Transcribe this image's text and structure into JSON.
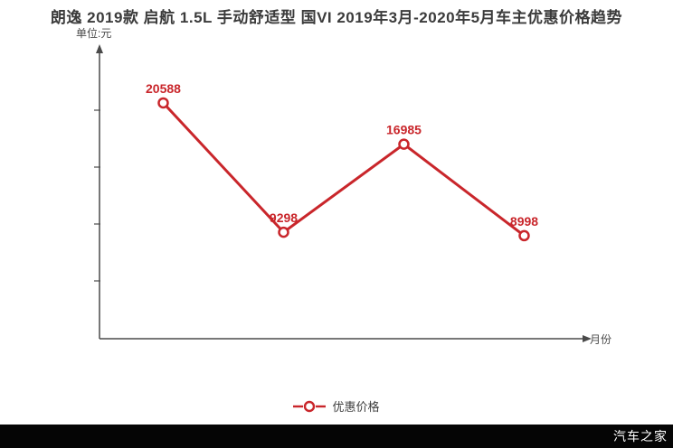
{
  "title": "朗逸 2019款 启航 1.5L 手动舒适型 国VI 2019年3月-2020年5月车主优惠价格趋势",
  "unit_label": "单位:元",
  "x_axis_label": "月份",
  "legend": {
    "label": "优惠价格"
  },
  "watermark": "汽车之家",
  "colors": {
    "line": "#c9262b",
    "point_label": "#c9262b",
    "title": "#3b3b3b",
    "axis": "#4a4a4a",
    "legend_text": "#404040",
    "footer_bg": "#050505",
    "footer_text": "#ffffff",
    "background": "#ffffff"
  },
  "chart_data": {
    "type": "line",
    "categories": [
      "",
      "",
      "",
      ""
    ],
    "series": [
      {
        "name": "优惠价格",
        "values": [
          20588,
          9298,
          16985,
          8998
        ],
        "point_labels": [
          "20588",
          "9298",
          "16985",
          "8998"
        ]
      }
    ],
    "title": "朗逸 2019款 启航 1.5L 手动舒适型 国VI 2019年3月-2020年5月车主优惠价格趋势",
    "xlabel": "月份",
    "ylabel": "单位:元",
    "ylim": [
      0,
      25000
    ],
    "y_tick_step": 5000,
    "grid": false,
    "legend_position": "bottom",
    "marker": "hollow-circle"
  }
}
